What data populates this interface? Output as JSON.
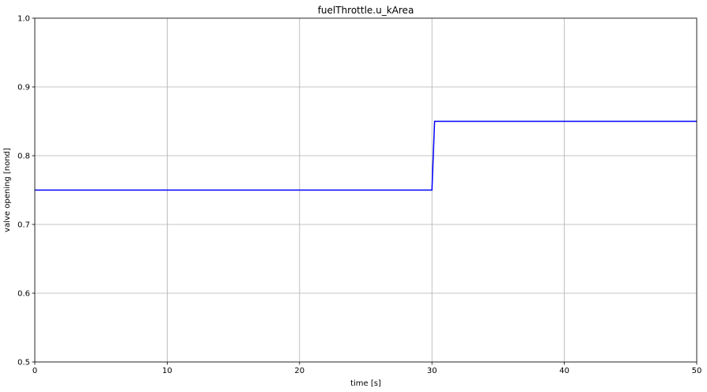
{
  "chart_data": {
    "type": "line",
    "title": "fuelThrottle.u_kArea",
    "xlabel": "time [s]",
    "ylabel": "valve opening [nond]",
    "xlim": [
      0,
      50
    ],
    "ylim": [
      0.5,
      1.0
    ],
    "xticks": [
      0,
      10,
      20,
      30,
      40,
      50
    ],
    "xtick_labels": [
      "0",
      "10",
      "20",
      "30",
      "40",
      "50"
    ],
    "yticks": [
      0.5,
      0.6,
      0.7,
      0.8,
      0.9,
      1.0
    ],
    "ytick_labels": [
      "0.5",
      "0.6",
      "0.7",
      "0.8",
      "0.9",
      "1.0"
    ],
    "grid": true,
    "series": [
      {
        "color": "#0000ff",
        "x": [
          0,
          30.0,
          30.2,
          50
        ],
        "y": [
          0.75,
          0.75,
          0.85,
          0.85
        ]
      }
    ]
  }
}
